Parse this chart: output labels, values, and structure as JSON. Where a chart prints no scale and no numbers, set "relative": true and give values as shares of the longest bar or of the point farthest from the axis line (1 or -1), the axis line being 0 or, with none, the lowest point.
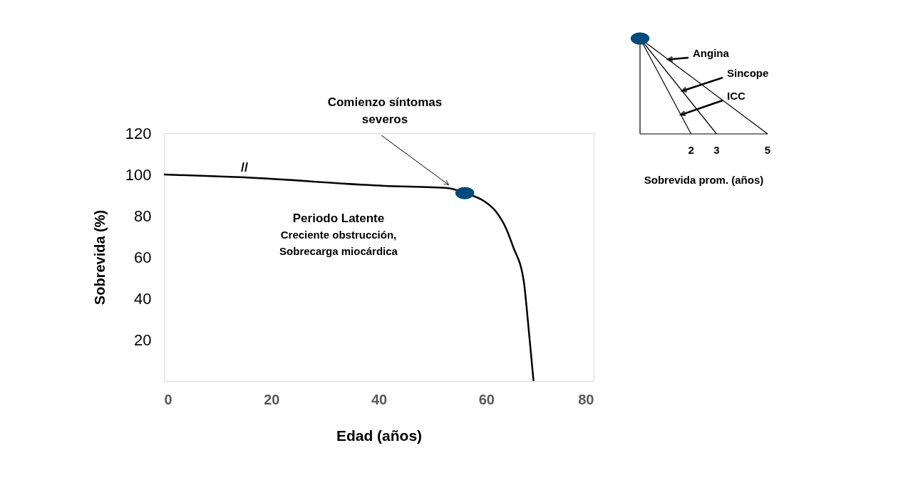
{
  "chart_data": [
    {
      "type": "line",
      "xlabel": "Edad (años)",
      "ylabel": "Sobrevida (%)",
      "xlim": [
        0,
        80
      ],
      "ylim": [
        0,
        120
      ],
      "xticks": [
        0,
        20,
        40,
        60,
        80
      ],
      "yticks": [
        20,
        40,
        60,
        80,
        100,
        120
      ],
      "series": [
        {
          "color": "#000000",
          "x": [
            0,
            15,
            41,
            53,
            56,
            59.7,
            61.7,
            63.7,
            65,
            67,
            67.5,
            68.8
          ],
          "values": [
            100,
            98.6,
            94.5,
            93.4,
            91,
            86.9,
            82.4,
            73.8,
            65,
            48,
            36,
            0
          ]
        },
        {
          "type": "scatter",
          "color": "#004a7c",
          "x": [
            56
          ],
          "values": [
            91
          ]
        }
      ],
      "annotations": [
        {
          "text": "Comienzo síntomas severos",
          "x": 53,
          "y": 95
        },
        {
          "text": "//",
          "x": 15,
          "y": 98.6
        },
        "Periodo Latente",
        "Creciente obstrucción,",
        "Sobrecarga miocárdica"
      ]
    },
    {
      "type": "line",
      "relative": true,
      "xlabel": "Sobrevida prom. (años)",
      "xlim": [
        0,
        5
      ],
      "xticks": [
        2,
        3,
        5
      ],
      "tick_labels": "x",
      "series": [
        {
          "name": "Angina",
          "color": "#000000",
          "x": [
            0,
            5
          ],
          "values": [
            1,
            0
          ]
        },
        {
          "name": "Sincope",
          "color": "#000000",
          "x": [
            0,
            3
          ],
          "values": [
            1,
            0
          ]
        },
        {
          "name": "ICC",
          "color": "#000000",
          "x": [
            0,
            2
          ],
          "values": [
            1,
            0
          ]
        },
        {
          "type": "scatter",
          "color": "#004a7c",
          "x": [
            0
          ],
          "values": [
            1
          ]
        }
      ]
    }
  ]
}
